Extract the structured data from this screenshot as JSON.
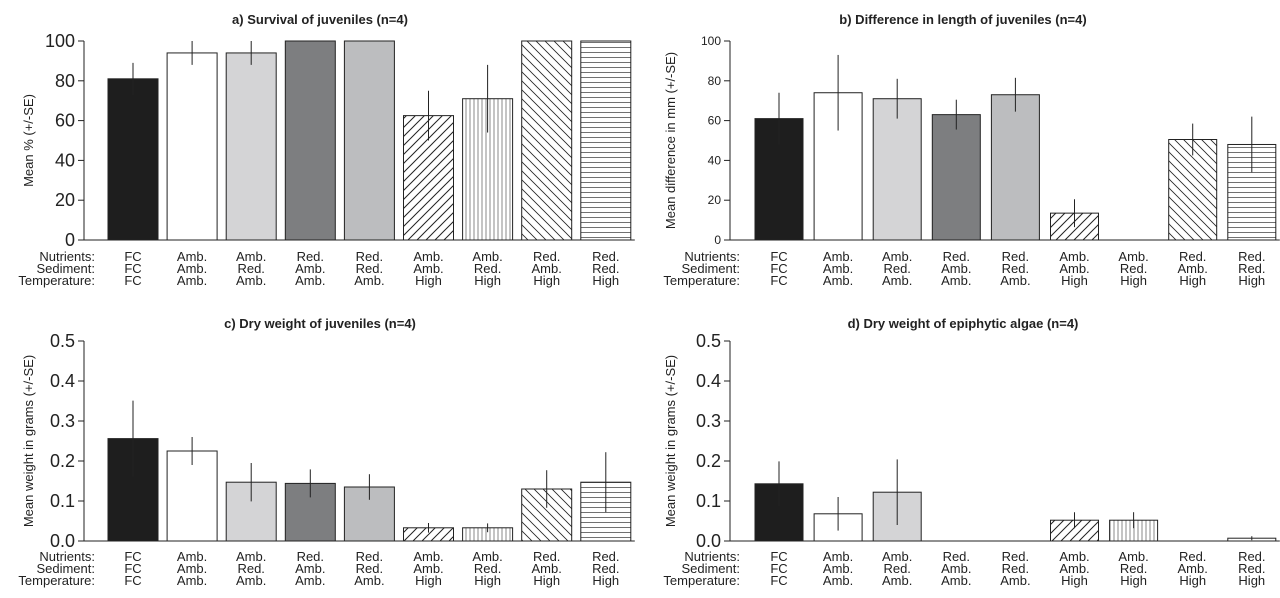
{
  "chart_data": [
    {
      "type": "bar",
      "title": "a) Survival of juveniles (n=4)",
      "ylabel": "Mean % (+/-SE)",
      "ylim": [
        0,
        100
      ],
      "yticks": [
        "0",
        "20",
        "40",
        "60",
        "80",
        "100"
      ],
      "ytick_values": [
        0,
        20,
        40,
        60,
        80,
        100
      ],
      "row_labels": [
        "Nutrients:",
        "Sediment:",
        "Temperature:"
      ],
      "categories": [
        [
          "FC",
          "FC",
          "FC"
        ],
        [
          "Amb.",
          "Amb.",
          "Amb."
        ],
        [
          "Amb.",
          "Red.",
          "Amb."
        ],
        [
          "Red.",
          "Amb.",
          "Amb."
        ],
        [
          "Red.",
          "Red.",
          "Amb."
        ],
        [
          "Amb.",
          "Amb.",
          "High"
        ],
        [
          "Amb.",
          "Red.",
          "High"
        ],
        [
          "Red.",
          "Amb.",
          "High"
        ],
        [
          "Red.",
          "Red.",
          "High"
        ]
      ],
      "values": [
        81,
        94,
        94,
        100,
        100,
        62.5,
        71,
        100,
        100
      ],
      "errors": [
        8,
        6,
        6,
        0,
        0,
        12.5,
        17,
        0,
        0
      ],
      "fills": [
        "solid-black",
        "white",
        "light-gray",
        "dark-gray",
        "mid-gray",
        "diag-right",
        "vertical",
        "diag-left",
        "horizontal"
      ]
    },
    {
      "type": "bar",
      "title": "b) Difference in length of juveniles (n=4)",
      "ylabel": "Mean difference in mm (+/-SE)",
      "ylim": [
        0,
        100
      ],
      "yticks": [
        "0",
        "20",
        "40",
        "60",
        "80",
        "100"
      ],
      "ytick_values": [
        0,
        20,
        40,
        60,
        80,
        100
      ],
      "row_labels": [
        "Nutrients:",
        "Sediment:",
        "Temperature:"
      ],
      "categories": [
        [
          "FC",
          "FC",
          "FC"
        ],
        [
          "Amb.",
          "Amb.",
          "Amb."
        ],
        [
          "Amb.",
          "Red.",
          "Amb."
        ],
        [
          "Red.",
          "Amb.",
          "Amb."
        ],
        [
          "Red.",
          "Red.",
          "Amb."
        ],
        [
          "Amb.",
          "Amb.",
          "High"
        ],
        [
          "Amb.",
          "Red.",
          "High"
        ],
        [
          "Red.",
          "Amb.",
          "High"
        ],
        [
          "Red.",
          "Red.",
          "High"
        ]
      ],
      "values": [
        61,
        74,
        71,
        63,
        73,
        13.5,
        null,
        50.5,
        48
      ],
      "errors": [
        13,
        19,
        10,
        7.5,
        8.5,
        7,
        null,
        8,
        14
      ],
      "fills": [
        "solid-black",
        "white",
        "light-gray",
        "dark-gray",
        "mid-gray",
        "diag-right",
        "vertical",
        "diag-left",
        "horizontal"
      ]
    },
    {
      "type": "bar",
      "title": "c) Dry weight of juveniles (n=4)",
      "ylabel": "Mean weight in grams (+/-SE)",
      "ylim": [
        0,
        0.5
      ],
      "yticks": [
        "0.0",
        "0.1",
        "0.2",
        "0.3",
        "0.4",
        "0.5"
      ],
      "ytick_values": [
        0,
        0.1,
        0.2,
        0.3,
        0.4,
        0.5
      ],
      "row_labels": [
        "Nutrients:",
        "Sediment:",
        "Temperature:"
      ],
      "categories": [
        [
          "FC",
          "FC",
          "FC"
        ],
        [
          "Amb.",
          "Amb.",
          "Amb."
        ],
        [
          "Amb.",
          "Red.",
          "Amb."
        ],
        [
          "Red.",
          "Amb.",
          "Amb."
        ],
        [
          "Red.",
          "Red.",
          "Amb."
        ],
        [
          "Amb.",
          "Amb.",
          "High"
        ],
        [
          "Amb.",
          "Red.",
          "High"
        ],
        [
          "Red.",
          "Amb.",
          "High"
        ],
        [
          "Red.",
          "Red.",
          "High"
        ]
      ],
      "values": [
        0.256,
        0.225,
        0.147,
        0.144,
        0.135,
        0.033,
        0.033,
        0.13,
        0.147
      ],
      "errors": [
        0.095,
        0.035,
        0.048,
        0.035,
        0.032,
        0.012,
        0.011,
        0.047,
        0.075
      ],
      "fills": [
        "solid-black",
        "white",
        "light-gray",
        "dark-gray",
        "mid-gray",
        "diag-right",
        "vertical",
        "diag-left",
        "horizontal"
      ]
    },
    {
      "type": "bar",
      "title": "d) Dry weight of epiphytic algae (n=4)",
      "ylabel": "Mean weight in grams (+/-SE)",
      "ylim": [
        0,
        0.5
      ],
      "yticks": [
        "0.0",
        "0.1",
        "0.2",
        "0.3",
        "0.4",
        "0.5"
      ],
      "ytick_values": [
        0,
        0.1,
        0.2,
        0.3,
        0.4,
        0.5
      ],
      "row_labels": [
        "Nutrients:",
        "Sediment:",
        "Temperature:"
      ],
      "categories": [
        [
          "FC",
          "FC",
          "FC"
        ],
        [
          "Amb.",
          "Amb.",
          "Amb."
        ],
        [
          "Amb.",
          "Red.",
          "Amb."
        ],
        [
          "Red.",
          "Amb.",
          "Amb."
        ],
        [
          "Red.",
          "Red.",
          "Amb."
        ],
        [
          "Amb.",
          "Amb.",
          "High"
        ],
        [
          "Amb.",
          "Red.",
          "High"
        ],
        [
          "Red.",
          "Amb.",
          "High"
        ],
        [
          "Red.",
          "Red.",
          "High"
        ]
      ],
      "values": [
        0.143,
        0.068,
        0.122,
        0,
        0,
        0.052,
        0.052,
        0,
        0.007
      ],
      "errors": [
        0.056,
        0.042,
        0.082,
        0,
        0,
        0.02,
        0.02,
        0,
        0.005
      ],
      "fills": [
        "solid-black",
        "white",
        "light-gray",
        "dark-gray",
        "mid-gray",
        "diag-right",
        "vertical",
        "diag-left",
        "horizontal"
      ]
    }
  ],
  "colors": {
    "solid-black": "#1e1e1e",
    "white": "#ffffff",
    "light-gray": "#d4d4d6",
    "dark-gray": "#7d7e80",
    "mid-gray": "#bcbdbf",
    "outline": "#222222"
  }
}
